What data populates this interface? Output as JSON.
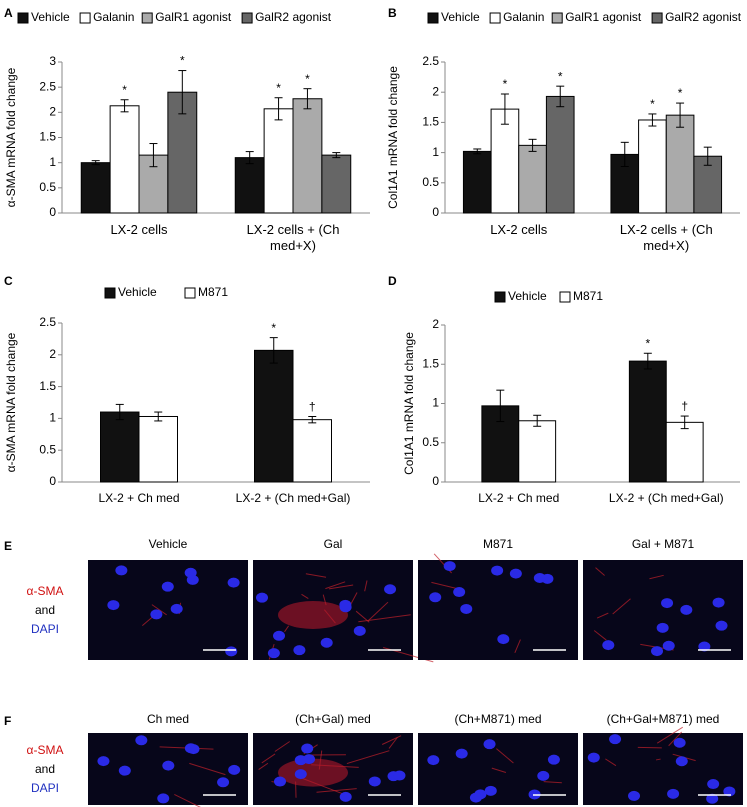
{
  "chart_data": [
    {
      "type": "bar",
      "panel": "A",
      "y_label": "α-SMA mRNA fold change",
      "categories": [
        "LX-2 cells",
        "LX-2 cells + (Ch med+X)"
      ],
      "series": [
        {
          "name": "Vehicle",
          "color": "#111111",
          "values": [
            1.0,
            1.1
          ],
          "errors": [
            0.04,
            0.12
          ],
          "sig": [
            null,
            null
          ]
        },
        {
          "name": "Galanin",
          "color": "#ffffff",
          "values": [
            2.13,
            2.07
          ],
          "errors": [
            0.12,
            0.22
          ],
          "sig": [
            "*",
            "*"
          ]
        },
        {
          "name": "GalR1 agonist",
          "color": "#aaaaaa",
          "values": [
            1.15,
            2.27
          ],
          "errors": [
            0.23,
            0.2
          ],
          "sig": [
            null,
            "*"
          ]
        },
        {
          "name": "GalR2 agonist",
          "color": "#666666",
          "values": [
            2.4,
            1.15
          ],
          "errors": [
            0.43,
            0.05
          ],
          "sig": [
            "*",
            null
          ]
        }
      ],
      "ylim": [
        0,
        3
      ],
      "yticks": [
        0,
        0.5,
        1,
        1.5,
        2,
        2.5,
        3
      ]
    },
    {
      "type": "bar",
      "panel": "B",
      "y_label": "Col1A1 mRNA fold change",
      "categories": [
        "LX-2 cells",
        "LX-2 cells + (Ch med+X)"
      ],
      "series": [
        {
          "name": "Vehicle",
          "color": "#111111",
          "values": [
            1.02,
            0.97
          ],
          "errors": [
            0.04,
            0.2
          ],
          "sig": [
            null,
            null
          ]
        },
        {
          "name": "Galanin",
          "color": "#ffffff",
          "values": [
            1.72,
            1.54
          ],
          "errors": [
            0.25,
            0.1
          ],
          "sig": [
            "*",
            "*"
          ]
        },
        {
          "name": "GalR1 agonist",
          "color": "#aaaaaa",
          "values": [
            1.12,
            1.62
          ],
          "errors": [
            0.1,
            0.2
          ],
          "sig": [
            null,
            "*"
          ]
        },
        {
          "name": "GalR2 agonist",
          "color": "#666666",
          "values": [
            1.93,
            0.94
          ],
          "errors": [
            0.17,
            0.15
          ],
          "sig": [
            "*",
            null
          ]
        }
      ],
      "ylim": [
        0,
        2.5
      ],
      "yticks": [
        0,
        0.5,
        1,
        1.5,
        2,
        2.5
      ]
    },
    {
      "type": "bar",
      "panel": "C",
      "y_label": "α-SMA mRNA fold change",
      "categories": [
        "LX-2 + Ch med",
        "LX-2 + (Ch med+Gal)"
      ],
      "series": [
        {
          "name": "Vehicle",
          "color": "#111111",
          "values": [
            1.1,
            2.07
          ],
          "errors": [
            0.12,
            0.2
          ],
          "sig": [
            null,
            "*"
          ]
        },
        {
          "name": "M871",
          "color": "#ffffff",
          "values": [
            1.03,
            0.98
          ],
          "errors": [
            0.07,
            0.05
          ],
          "sig": [
            null,
            "†"
          ]
        }
      ],
      "ylim": [
        0,
        2.5
      ],
      "yticks": [
        0,
        0.5,
        1,
        1.5,
        2,
        2.5
      ]
    },
    {
      "type": "bar",
      "panel": "D",
      "y_label": "Col1A1 mRNA fold change",
      "categories": [
        "LX-2 + Ch med",
        "LX-2 + (Ch med+Gal)"
      ],
      "series": [
        {
          "name": "Vehicle",
          "color": "#111111",
          "values": [
            0.97,
            1.54
          ],
          "errors": [
            0.2,
            0.1
          ],
          "sig": [
            null,
            "*"
          ]
        },
        {
          "name": "M871",
          "color": "#ffffff",
          "values": [
            0.78,
            0.76
          ],
          "errors": [
            0.07,
            0.08
          ],
          "sig": [
            null,
            "†"
          ]
        }
      ],
      "ylim": [
        0,
        2
      ],
      "yticks": [
        0,
        0.5,
        1,
        1.5,
        2
      ]
    }
  ],
  "image_panels": [
    {
      "label": "E",
      "columns": [
        "Vehicle",
        "Gal",
        "M871",
        "Gal + M871"
      ],
      "stain": [
        "α-SMA",
        "and",
        "DAPI"
      ]
    },
    {
      "label": "F",
      "columns": [
        "Ch med",
        "(Ch+Gal) med",
        "(Ch+M871) med",
        "(Ch+Gal+M871) med"
      ],
      "stain": [
        "α-SMA",
        "and",
        "DAPI"
      ]
    }
  ]
}
